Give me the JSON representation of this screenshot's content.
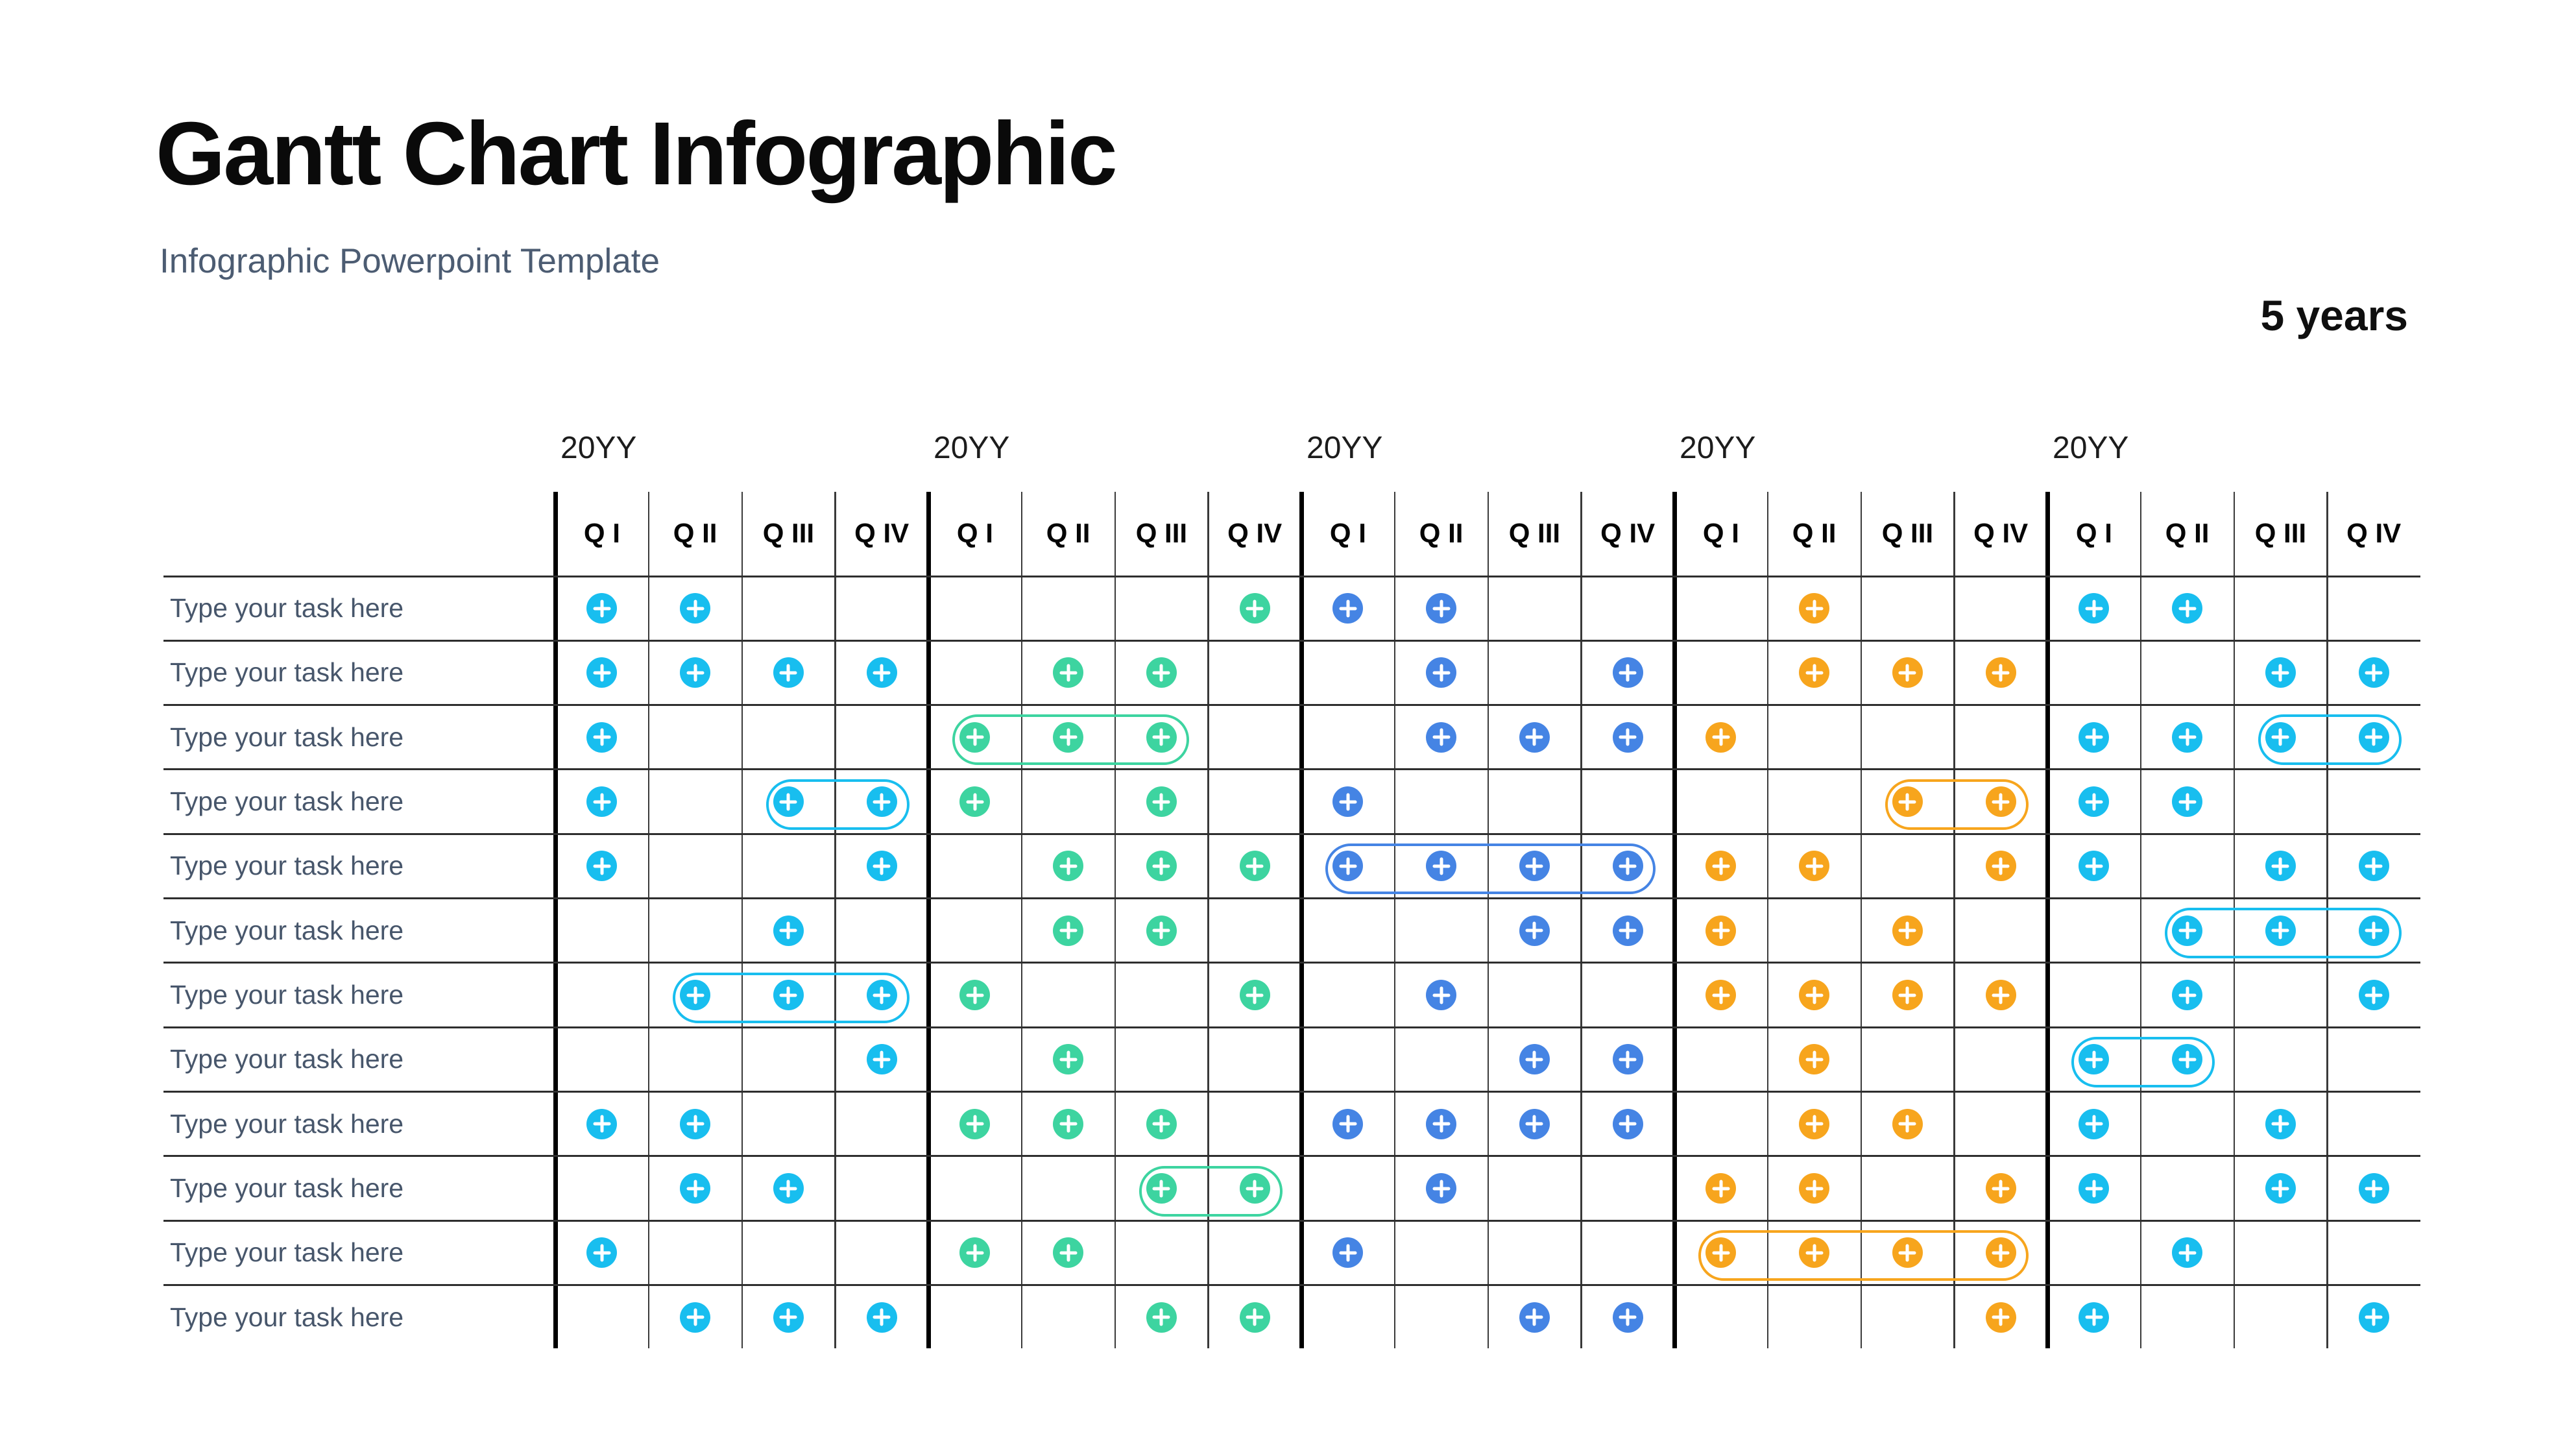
{
  "page": {
    "title": "Gantt Chart Infographic",
    "subtitle": "Infographic Powerpoint Template",
    "duration_label": "5 years"
  },
  "colors": {
    "cyan": "#18beef",
    "green": "#3dd4a0",
    "blue": "#4584e4",
    "orange": "#f7a51d",
    "label_text": "#47566b",
    "grid_thin": "#3a3a3a",
    "grid_thick": "#000000"
  },
  "chart_data": {
    "type": "gantt",
    "title": "Gantt Chart Infographic",
    "subtitle": "Infographic Powerpoint Template",
    "duration": "5 years",
    "years": [
      "20YY",
      "20YY",
      "20YY",
      "20YY",
      "20YY"
    ],
    "quarters": [
      "Q I",
      "Q II",
      "Q III",
      "Q IV"
    ],
    "year_colors": [
      "cyan",
      "green",
      "blue",
      "orange",
      "cyan"
    ],
    "legend_position": "none",
    "rows": [
      {
        "label": "Type your task here",
        "segments": [
          {
            "year": 1,
            "color": "cyan",
            "quarters": [
              1,
              2
            ]
          },
          {
            "year": 2,
            "color": "green",
            "quarters": [
              4
            ]
          },
          {
            "year": 3,
            "color": "blue",
            "quarters": [
              1,
              2
            ]
          },
          {
            "year": 4,
            "color": "orange",
            "quarters": [
              2
            ]
          },
          {
            "year": 5,
            "color": "cyan",
            "quarters": [
              1,
              2
            ]
          }
        ],
        "pills": []
      },
      {
        "label": "Type your task here",
        "segments": [
          {
            "year": 1,
            "color": "cyan",
            "quarters": [
              1,
              2,
              3,
              4
            ]
          },
          {
            "year": 2,
            "color": "green",
            "quarters": [
              2,
              3
            ]
          },
          {
            "year": 3,
            "color": "blue",
            "quarters": [
              2,
              4
            ]
          },
          {
            "year": 4,
            "color": "orange",
            "quarters": [
              2,
              3,
              4
            ]
          },
          {
            "year": 5,
            "color": "cyan",
            "quarters": [
              3,
              4
            ]
          }
        ],
        "pills": []
      },
      {
        "label": "Type your task here",
        "segments": [
          {
            "year": 1,
            "color": "cyan",
            "quarters": [
              1
            ]
          },
          {
            "year": 2,
            "color": "green",
            "quarters": [
              1,
              2,
              3
            ]
          },
          {
            "year": 3,
            "color": "blue",
            "quarters": [
              2,
              3,
              4
            ]
          },
          {
            "year": 4,
            "color": "orange",
            "quarters": [
              1
            ]
          },
          {
            "year": 5,
            "color": "cyan",
            "quarters": [
              1,
              2,
              3,
              4
            ]
          }
        ],
        "pills": [
          {
            "year": 2,
            "from": 1,
            "to": 3,
            "color": "green"
          },
          {
            "year": 5,
            "from": 3,
            "to": 4,
            "color": "cyan"
          }
        ]
      },
      {
        "label": "Type your task here",
        "segments": [
          {
            "year": 1,
            "color": "cyan",
            "quarters": [
              1,
              3,
              4
            ]
          },
          {
            "year": 2,
            "color": "green",
            "quarters": [
              1,
              3
            ]
          },
          {
            "year": 3,
            "color": "blue",
            "quarters": [
              1
            ]
          },
          {
            "year": 4,
            "color": "orange",
            "quarters": [
              3,
              4
            ]
          },
          {
            "year": 5,
            "color": "cyan",
            "quarters": [
              1,
              2
            ]
          }
        ],
        "pills": [
          {
            "year": 1,
            "from": 3,
            "to": 4,
            "color": "cyan"
          },
          {
            "year": 4,
            "from": 3,
            "to": 4,
            "color": "orange"
          }
        ]
      },
      {
        "label": "Type your task here",
        "segments": [
          {
            "year": 1,
            "color": "cyan",
            "quarters": [
              1,
              4
            ]
          },
          {
            "year": 2,
            "color": "green",
            "quarters": [
              2,
              3,
              4
            ]
          },
          {
            "year": 3,
            "color": "blue",
            "quarters": [
              1,
              2,
              3,
              4
            ]
          },
          {
            "year": 4,
            "color": "orange",
            "quarters": [
              1,
              2,
              4
            ]
          },
          {
            "year": 5,
            "color": "cyan",
            "quarters": [
              1,
              3,
              4
            ]
          }
        ],
        "pills": [
          {
            "year": 3,
            "from": 1,
            "to": 4,
            "color": "blue"
          }
        ]
      },
      {
        "label": "Type your task here",
        "segments": [
          {
            "year": 1,
            "color": "cyan",
            "quarters": [
              3
            ]
          },
          {
            "year": 2,
            "color": "green",
            "quarters": [
              2,
              3
            ]
          },
          {
            "year": 3,
            "color": "blue",
            "quarters": [
              3,
              4
            ]
          },
          {
            "year": 4,
            "color": "orange",
            "quarters": [
              1,
              3
            ]
          },
          {
            "year": 5,
            "color": "cyan",
            "quarters": [
              2,
              3,
              4
            ]
          }
        ],
        "pills": [
          {
            "year": 5,
            "from": 2,
            "to": 4,
            "color": "cyan"
          }
        ]
      },
      {
        "label": "Type your task here",
        "segments": [
          {
            "year": 1,
            "color": "cyan",
            "quarters": [
              2,
              3,
              4
            ]
          },
          {
            "year": 2,
            "color": "green",
            "quarters": [
              1,
              4
            ]
          },
          {
            "year": 3,
            "color": "blue",
            "quarters": [
              2
            ]
          },
          {
            "year": 4,
            "color": "orange",
            "quarters": [
              1,
              2,
              3,
              4
            ]
          },
          {
            "year": 5,
            "color": "cyan",
            "quarters": [
              2,
              4
            ]
          }
        ],
        "pills": [
          {
            "year": 1,
            "from": 2,
            "to": 4,
            "color": "cyan"
          }
        ]
      },
      {
        "label": "Type your task here",
        "segments": [
          {
            "year": 1,
            "color": "cyan",
            "quarters": [
              4
            ]
          },
          {
            "year": 2,
            "color": "green",
            "quarters": [
              2
            ]
          },
          {
            "year": 3,
            "color": "blue",
            "quarters": [
              3,
              4
            ]
          },
          {
            "year": 4,
            "color": "orange",
            "quarters": [
              2
            ]
          },
          {
            "year": 5,
            "color": "cyan",
            "quarters": [
              1,
              2
            ]
          }
        ],
        "pills": [
          {
            "year": 5,
            "from": 1,
            "to": 2,
            "color": "cyan"
          }
        ]
      },
      {
        "label": "Type your task here",
        "segments": [
          {
            "year": 1,
            "color": "cyan",
            "quarters": [
              1,
              2
            ]
          },
          {
            "year": 2,
            "color": "green",
            "quarters": [
              1,
              2,
              3
            ]
          },
          {
            "year": 3,
            "color": "blue",
            "quarters": [
              1,
              2,
              3,
              4
            ]
          },
          {
            "year": 4,
            "color": "orange",
            "quarters": [
              2,
              3
            ]
          },
          {
            "year": 5,
            "color": "cyan",
            "quarters": [
              1,
              3
            ]
          }
        ],
        "pills": []
      },
      {
        "label": "Type your task here",
        "segments": [
          {
            "year": 1,
            "color": "cyan",
            "quarters": [
              2,
              3
            ]
          },
          {
            "year": 2,
            "color": "green",
            "quarters": [
              3,
              4
            ]
          },
          {
            "year": 3,
            "color": "blue",
            "quarters": [
              2
            ]
          },
          {
            "year": 4,
            "color": "orange",
            "quarters": [
              1,
              2,
              4
            ]
          },
          {
            "year": 5,
            "color": "cyan",
            "quarters": [
              1,
              3,
              4
            ]
          }
        ],
        "pills": [
          {
            "year": 2,
            "from": 3,
            "to": 4,
            "color": "green"
          }
        ]
      },
      {
        "label": "Type your task here",
        "segments": [
          {
            "year": 1,
            "color": "cyan",
            "quarters": [
              1
            ]
          },
          {
            "year": 2,
            "color": "green",
            "quarters": [
              1,
              2
            ]
          },
          {
            "year": 3,
            "color": "blue",
            "quarters": [
              1
            ]
          },
          {
            "year": 4,
            "color": "orange",
            "quarters": [
              1,
              2,
              3,
              4
            ]
          },
          {
            "year": 5,
            "color": "cyan",
            "quarters": [
              2
            ]
          }
        ],
        "pills": [
          {
            "year": 4,
            "from": 1,
            "to": 4,
            "color": "orange"
          }
        ]
      },
      {
        "label": "Type your task here",
        "segments": [
          {
            "year": 1,
            "color": "cyan",
            "quarters": [
              2,
              3,
              4
            ]
          },
          {
            "year": 2,
            "color": "green",
            "quarters": [
              3,
              4
            ]
          },
          {
            "year": 3,
            "color": "blue",
            "quarters": [
              3,
              4
            ]
          },
          {
            "year": 4,
            "color": "orange",
            "quarters": [
              4
            ]
          },
          {
            "year": 5,
            "color": "cyan",
            "quarters": [
              1,
              4
            ]
          }
        ],
        "pills": []
      }
    ]
  }
}
